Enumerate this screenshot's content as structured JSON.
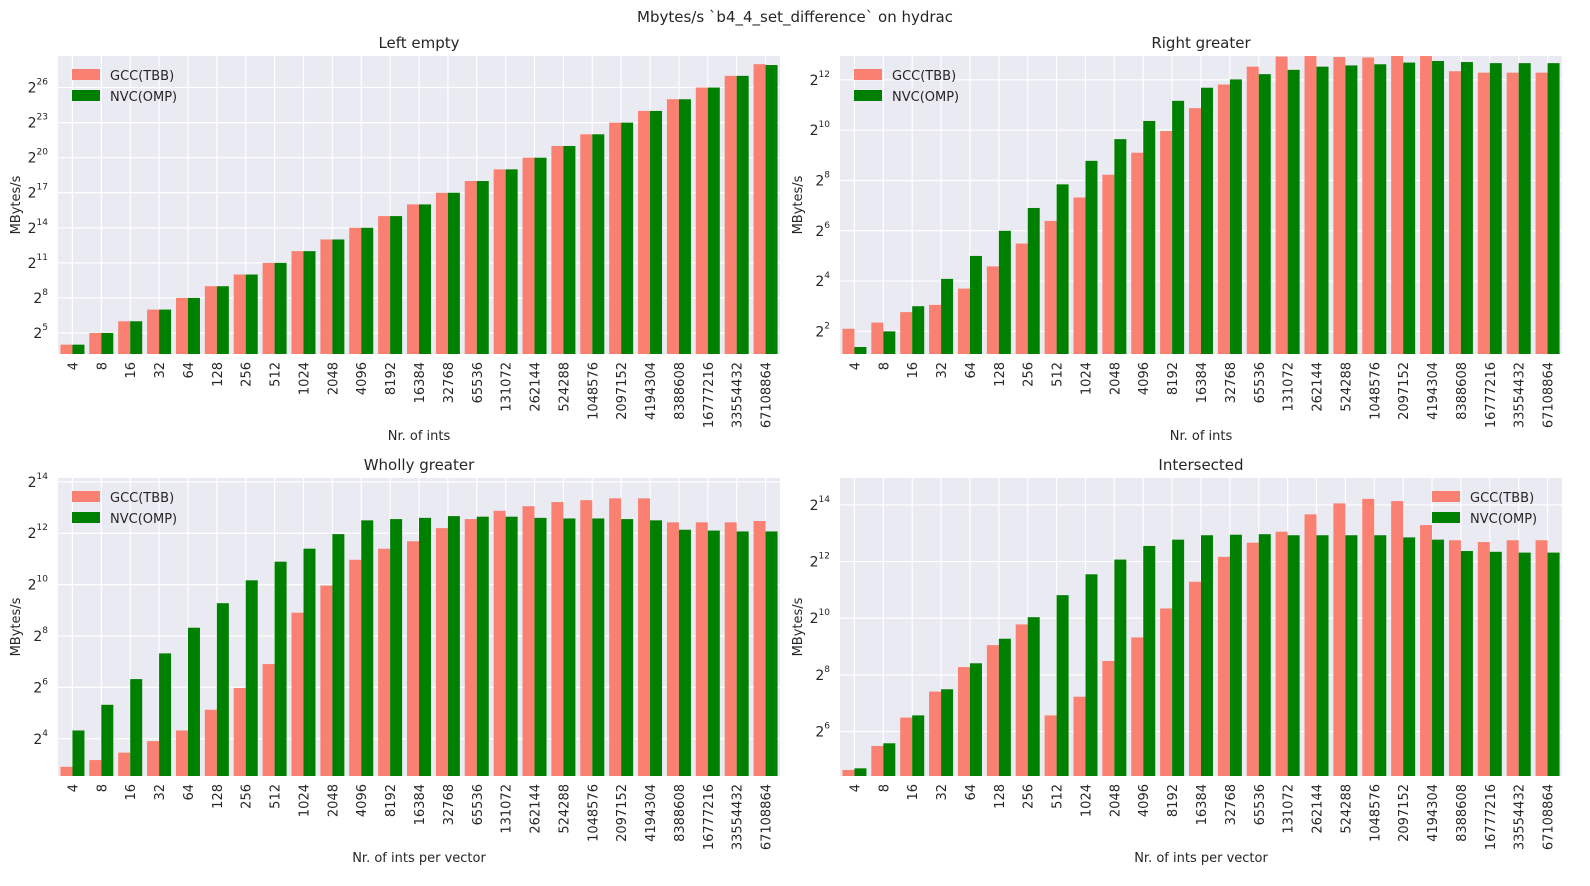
{
  "figure": {
    "suptitle": "Mbytes/s `b4_4_set_difference` on hydrac"
  },
  "colors": {
    "gcc": "#fa8072",
    "nvc": "#008000",
    "panel_bg": "#eaeaf2",
    "grid": "#ffffff"
  },
  "chart_data": [
    {
      "type": "bar",
      "title": "Left empty",
      "xlabel": "Nr. of ints",
      "ylabel": "MBytes/s",
      "yscale": "log2",
      "ylim_exp": [
        3.2,
        28.7
      ],
      "ytick_exps": [
        5,
        8,
        11,
        14,
        17,
        20,
        23,
        26
      ],
      "legend_loc": "upper-left",
      "categories": [
        "4",
        "8",
        "16",
        "32",
        "64",
        "128",
        "256",
        "512",
        "1024",
        "2048",
        "4096",
        "8192",
        "16384",
        "32768",
        "65536",
        "131072",
        "262144",
        "524288",
        "1048576",
        "2097152",
        "4194304",
        "8388608",
        "16777216",
        "33554432",
        "67108864"
      ],
      "series": [
        {
          "name": "GCC(TBB)",
          "color": "#fa8072",
          "values": [
            16,
            32,
            64,
            128,
            256,
            512,
            1024,
            2048,
            4096,
            8192,
            16384,
            32768,
            65536,
            131072,
            262144,
            524288,
            1048576,
            2097152,
            4194304,
            8388608,
            16777216,
            33554432,
            67108864,
            134217728,
            268435456
          ]
        },
        {
          "name": "NVC(OMP)",
          "color": "#008000",
          "values": [
            16,
            32,
            64,
            128,
            256,
            512,
            1024,
            2048,
            4096,
            8192,
            16384,
            32768,
            65536,
            131072,
            262144,
            524288,
            1048576,
            2097152,
            4194304,
            8388608,
            16777216,
            33554432,
            67108864,
            134217728,
            255000000
          ]
        }
      ]
    },
    {
      "type": "bar",
      "title": "Right greater",
      "xlabel": "Nr. of ints",
      "ylabel": "MBytes/s",
      "yscale": "log2",
      "ylim_exp": [
        1.1,
        12.95
      ],
      "ytick_exps": [
        2,
        4,
        6,
        8,
        10,
        12
      ],
      "legend_loc": "upper-left",
      "categories": [
        "4",
        "8",
        "16",
        "32",
        "64",
        "128",
        "256",
        "512",
        "1024",
        "2048",
        "4096",
        "8192",
        "16384",
        "32768",
        "65536",
        "131072",
        "262144",
        "524288",
        "1048576",
        "2097152",
        "4194304",
        "8388608",
        "16777216",
        "33554432",
        "67108864"
      ],
      "series": [
        {
          "name": "GCC(TBB)",
          "color": "#fa8072",
          "values": [
            4.3,
            5.1,
            6.8,
            8.3,
            13.0,
            24.0,
            45.0,
            84.0,
            160,
            300,
            550,
            1000,
            1880,
            3600,
            5900,
            7800,
            7900,
            7700,
            7600,
            8200,
            7900,
            5200,
            5000,
            5000,
            5000
          ]
        },
        {
          "name": "NVC(OMP)",
          "color": "#008000",
          "values": [
            2.6,
            4.0,
            8.0,
            17.0,
            32.0,
            64.0,
            120,
            230,
            440,
            800,
            1320,
            2300,
            3300,
            4150,
            4800,
            5400,
            5900,
            6100,
            6300,
            6600,
            6900,
            6700,
            6500,
            6500,
            6500
          ]
        }
      ]
    },
    {
      "type": "bar",
      "title": "Wholly greater",
      "xlabel": "Nr. of ints per vector",
      "ylabel": "MBytes/s",
      "yscale": "log2",
      "ylim_exp": [
        2.55,
        14.15
      ],
      "ytick_exps": [
        4,
        6,
        8,
        10,
        12,
        14
      ],
      "legend_loc": "upper-left",
      "categories": [
        "4",
        "8",
        "16",
        "32",
        "64",
        "128",
        "256",
        "512",
        "1024",
        "2048",
        "4096",
        "8192",
        "16384",
        "32768",
        "65536",
        "131072",
        "262144",
        "524288",
        "1048576",
        "2097152",
        "4194304",
        "8388608",
        "16777216",
        "33554432",
        "67108864"
      ],
      "series": [
        {
          "name": "GCC(TBB)",
          "color": "#fa8072",
          "values": [
            7.5,
            9.0,
            11.0,
            15.0,
            20.0,
            35.0,
            63.0,
            120,
            480,
            1000,
            2000,
            2700,
            3300,
            4700,
            6000,
            7500,
            8500,
            9500,
            10000,
            10500,
            10500,
            5500,
            5500,
            5500,
            5700
          ]
        },
        {
          "name": "NVC(OMP)",
          "color": "#008000",
          "values": [
            20.0,
            40.0,
            80.0,
            160.0,
            320.0,
            620.0,
            1150.0,
            1900.0,
            2700.0,
            4000.0,
            5800.0,
            6000.0,
            6200.0,
            6500.0,
            6400.0,
            6400.0,
            6200.0,
            6100.0,
            6100.0,
            6000.0,
            5800.0,
            4500.0,
            4400.0,
            4300.0,
            4300.0
          ]
        }
      ]
    },
    {
      "type": "bar",
      "title": "Intersected",
      "xlabel": "Nr. of ints per vector",
      "ylabel": "MBytes/s",
      "yscale": "log2",
      "ylim_exp": [
        4.43,
        14.95
      ],
      "ytick_exps": [
        6,
        8,
        10,
        12,
        14
      ],
      "legend_loc": "upper-right",
      "categories": [
        "4",
        "8",
        "16",
        "32",
        "64",
        "128",
        "256",
        "512",
        "1024",
        "2048",
        "4096",
        "8192",
        "16384",
        "32768",
        "65536",
        "131072",
        "262144",
        "524288",
        "1048576",
        "2097152",
        "4194304",
        "8388608",
        "16777216",
        "33554432",
        "67108864"
      ],
      "series": [
        {
          "name": "GCC(TBB)",
          "color": "#fa8072",
          "values": [
            25.0,
            45.0,
            90.0,
            170.0,
            310.0,
            530.0,
            880.0,
            95.0,
            150.0,
            360.0,
            640.0,
            1300.0,
            2500.0,
            4600.0,
            6500.0,
            8500.0,
            13000.0,
            17000.0,
            19000.0,
            18000.0,
            10000.0,
            6900.0,
            6600.0,
            6900.0,
            6900.0
          ]
        },
        {
          "name": "NVC(OMP)",
          "color": "#008000",
          "values": [
            26.0,
            48.0,
            95.0,
            180.0,
            340.0,
            620.0,
            1050.0,
            1800.0,
            3000.0,
            4300.0,
            6000.0,
            7000.0,
            7800.0,
            7900.0,
            8000.0,
            7800.0,
            7800.0,
            7800.0,
            7800.0,
            7400.0,
            7000.0,
            5300.0,
            5200.0,
            5100.0,
            5100.0
          ]
        }
      ]
    }
  ]
}
